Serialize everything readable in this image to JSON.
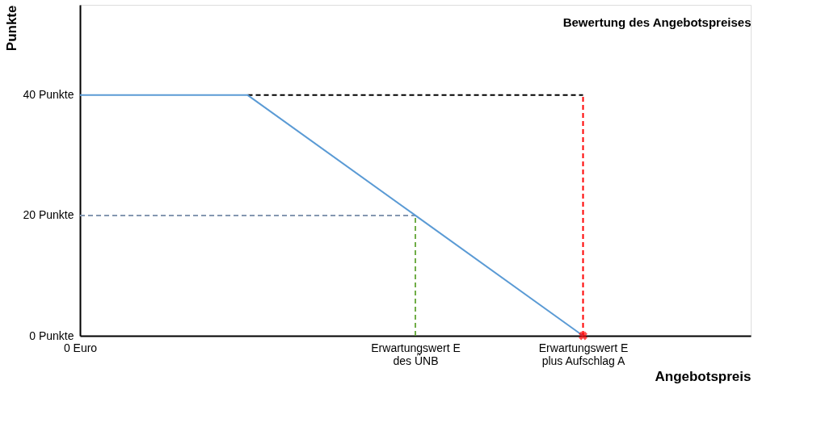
{
  "chart_data": {
    "type": "line",
    "title": "Bewertung des Angebotspreises",
    "xlabel": "Angebotspreis",
    "ylabel": "Punkte",
    "categories": [
      "0 Euro",
      null,
      "Erwartungswert E\ndes ÜNB",
      "Erwartungswert E\nplus Aufschlag A",
      null
    ],
    "ylim": [
      0,
      55
    ],
    "yticks": [
      {
        "value": 0,
        "label": "0 Punkte"
      },
      {
        "value": 20,
        "label": "20 Punkte"
      },
      {
        "value": 40,
        "label": "40 Punkte"
      }
    ],
    "grid": false,
    "series": [
      {
        "color": "#000000",
        "line_style": "dashed",
        "values": [
          null,
          40,
          null,
          40,
          null
        ]
      },
      {
        "color": "#8497b0",
        "line_style": "dashed",
        "values": [
          20,
          null,
          20,
          null,
          null
        ]
      },
      {
        "color": "#70ad47",
        "line_style": "dashed",
        "x": [
          "Erwartungswert E\ndes ÜNB",
          "Erwartungswert E\ndes ÜNB"
        ],
        "values": [
          0,
          20
        ]
      },
      {
        "color": "#ff0000",
        "line_style": "dashed",
        "x": [
          "Erwartungswert E\nplus Aufschlag A",
          "Erwartungswert E\nplus Aufschlag A"
        ],
        "values": [
          0,
          40
        ]
      },
      {
        "color": "#5b9bd5",
        "line_style": "solid",
        "values": [
          40,
          40,
          20,
          0,
          null
        ]
      },
      {
        "type": "scatter",
        "color": "#ff0000",
        "marker": "cross",
        "x": [
          "Erwartungswert E\nplus Aufschlag A"
        ],
        "values": [
          0
        ]
      }
    ]
  }
}
